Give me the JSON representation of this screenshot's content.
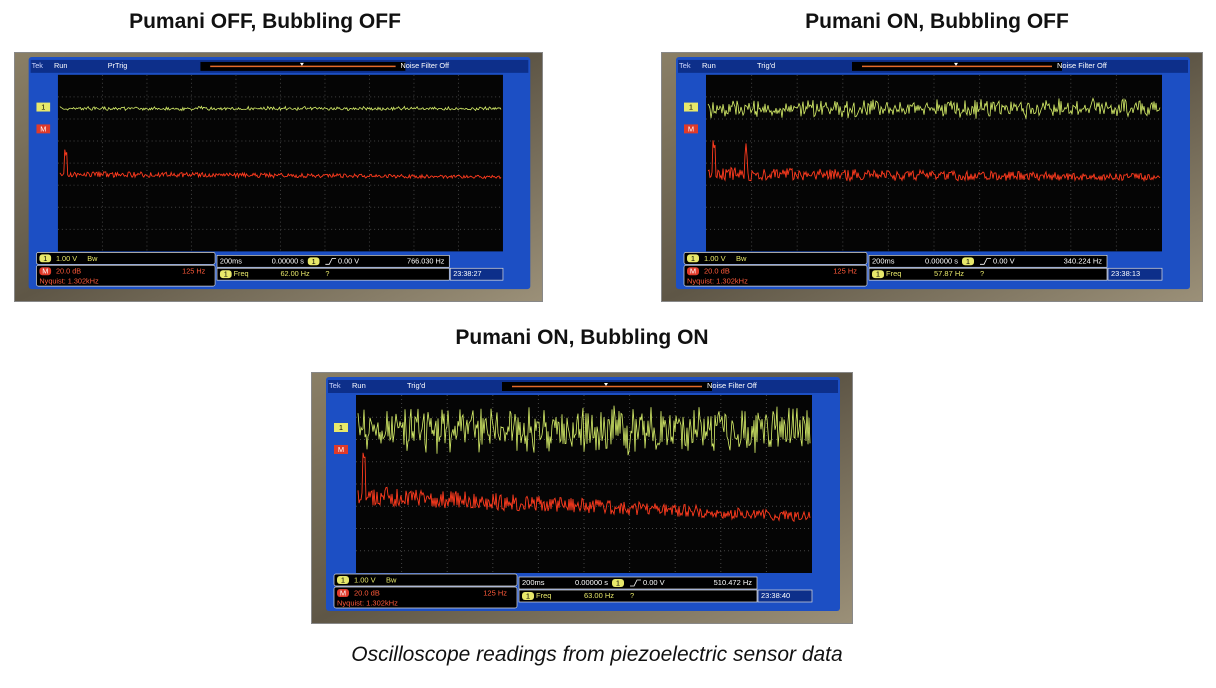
{
  "panels": [
    {
      "title": "Pumani OFF, Bubbling OFF",
      "screen": {
        "brand": "Tek",
        "run": "Run",
        "trigger": "PrTrig",
        "filter": "Noise Filter Off",
        "ch_badge": "1",
        "ch_scale": "1.00 V",
        "bw": "Bw",
        "math_badge": "M",
        "math_scale": "20.0 dB",
        "math_freq": "125 Hz",
        "nyquist": "Nyquist: 1.302kHz",
        "timebase": "200ms",
        "position": "0.00000 s",
        "trig_level": "0.00 V",
        "trig_freq": "766.030 Hz",
        "meas_label": "Freq",
        "meas_value": "62.00 Hz",
        "meas_flag": "?",
        "clock": "23:38:27"
      }
    },
    {
      "title": "Pumani ON, Bubbling OFF",
      "screen": {
        "brand": "Tek",
        "run": "Run",
        "trigger": "Trig'd",
        "filter": "Noise Filter Off",
        "ch_badge": "1",
        "ch_scale": "1.00 V",
        "bw": "Bw",
        "math_badge": "M",
        "math_scale": "20.0 dB",
        "math_freq": "125 Hz",
        "nyquist": "Nyquist: 1.302kHz",
        "timebase": "200ms",
        "position": "0.00000 s",
        "trig_level": "0.00 V",
        "trig_freq": "340.224 Hz",
        "meas_label": "Freq",
        "meas_value": "57.87 Hz",
        "meas_flag": "?",
        "clock": "23:38:13"
      }
    },
    {
      "title": "Pumani ON, Bubbling ON",
      "screen": {
        "brand": "Tek",
        "run": "Run",
        "trigger": "Trig'd",
        "filter": "Noise Filter Off",
        "ch_badge": "1",
        "ch_scale": "1.00 V",
        "bw": "Bw",
        "math_badge": "M",
        "math_scale": "20.0 dB",
        "math_freq": "125 Hz",
        "nyquist": "Nyquist: 1.302kHz",
        "timebase": "200ms",
        "position": "0.00000 s",
        "trig_level": "0.00 V",
        "trig_freq": "510.472 Hz",
        "meas_label": "Freq",
        "meas_value": "63.00 Hz",
        "meas_flag": "?",
        "clock": "23:38:40"
      }
    }
  ],
  "caption": "Oscilloscope readings from piezoelectric sensor data"
}
